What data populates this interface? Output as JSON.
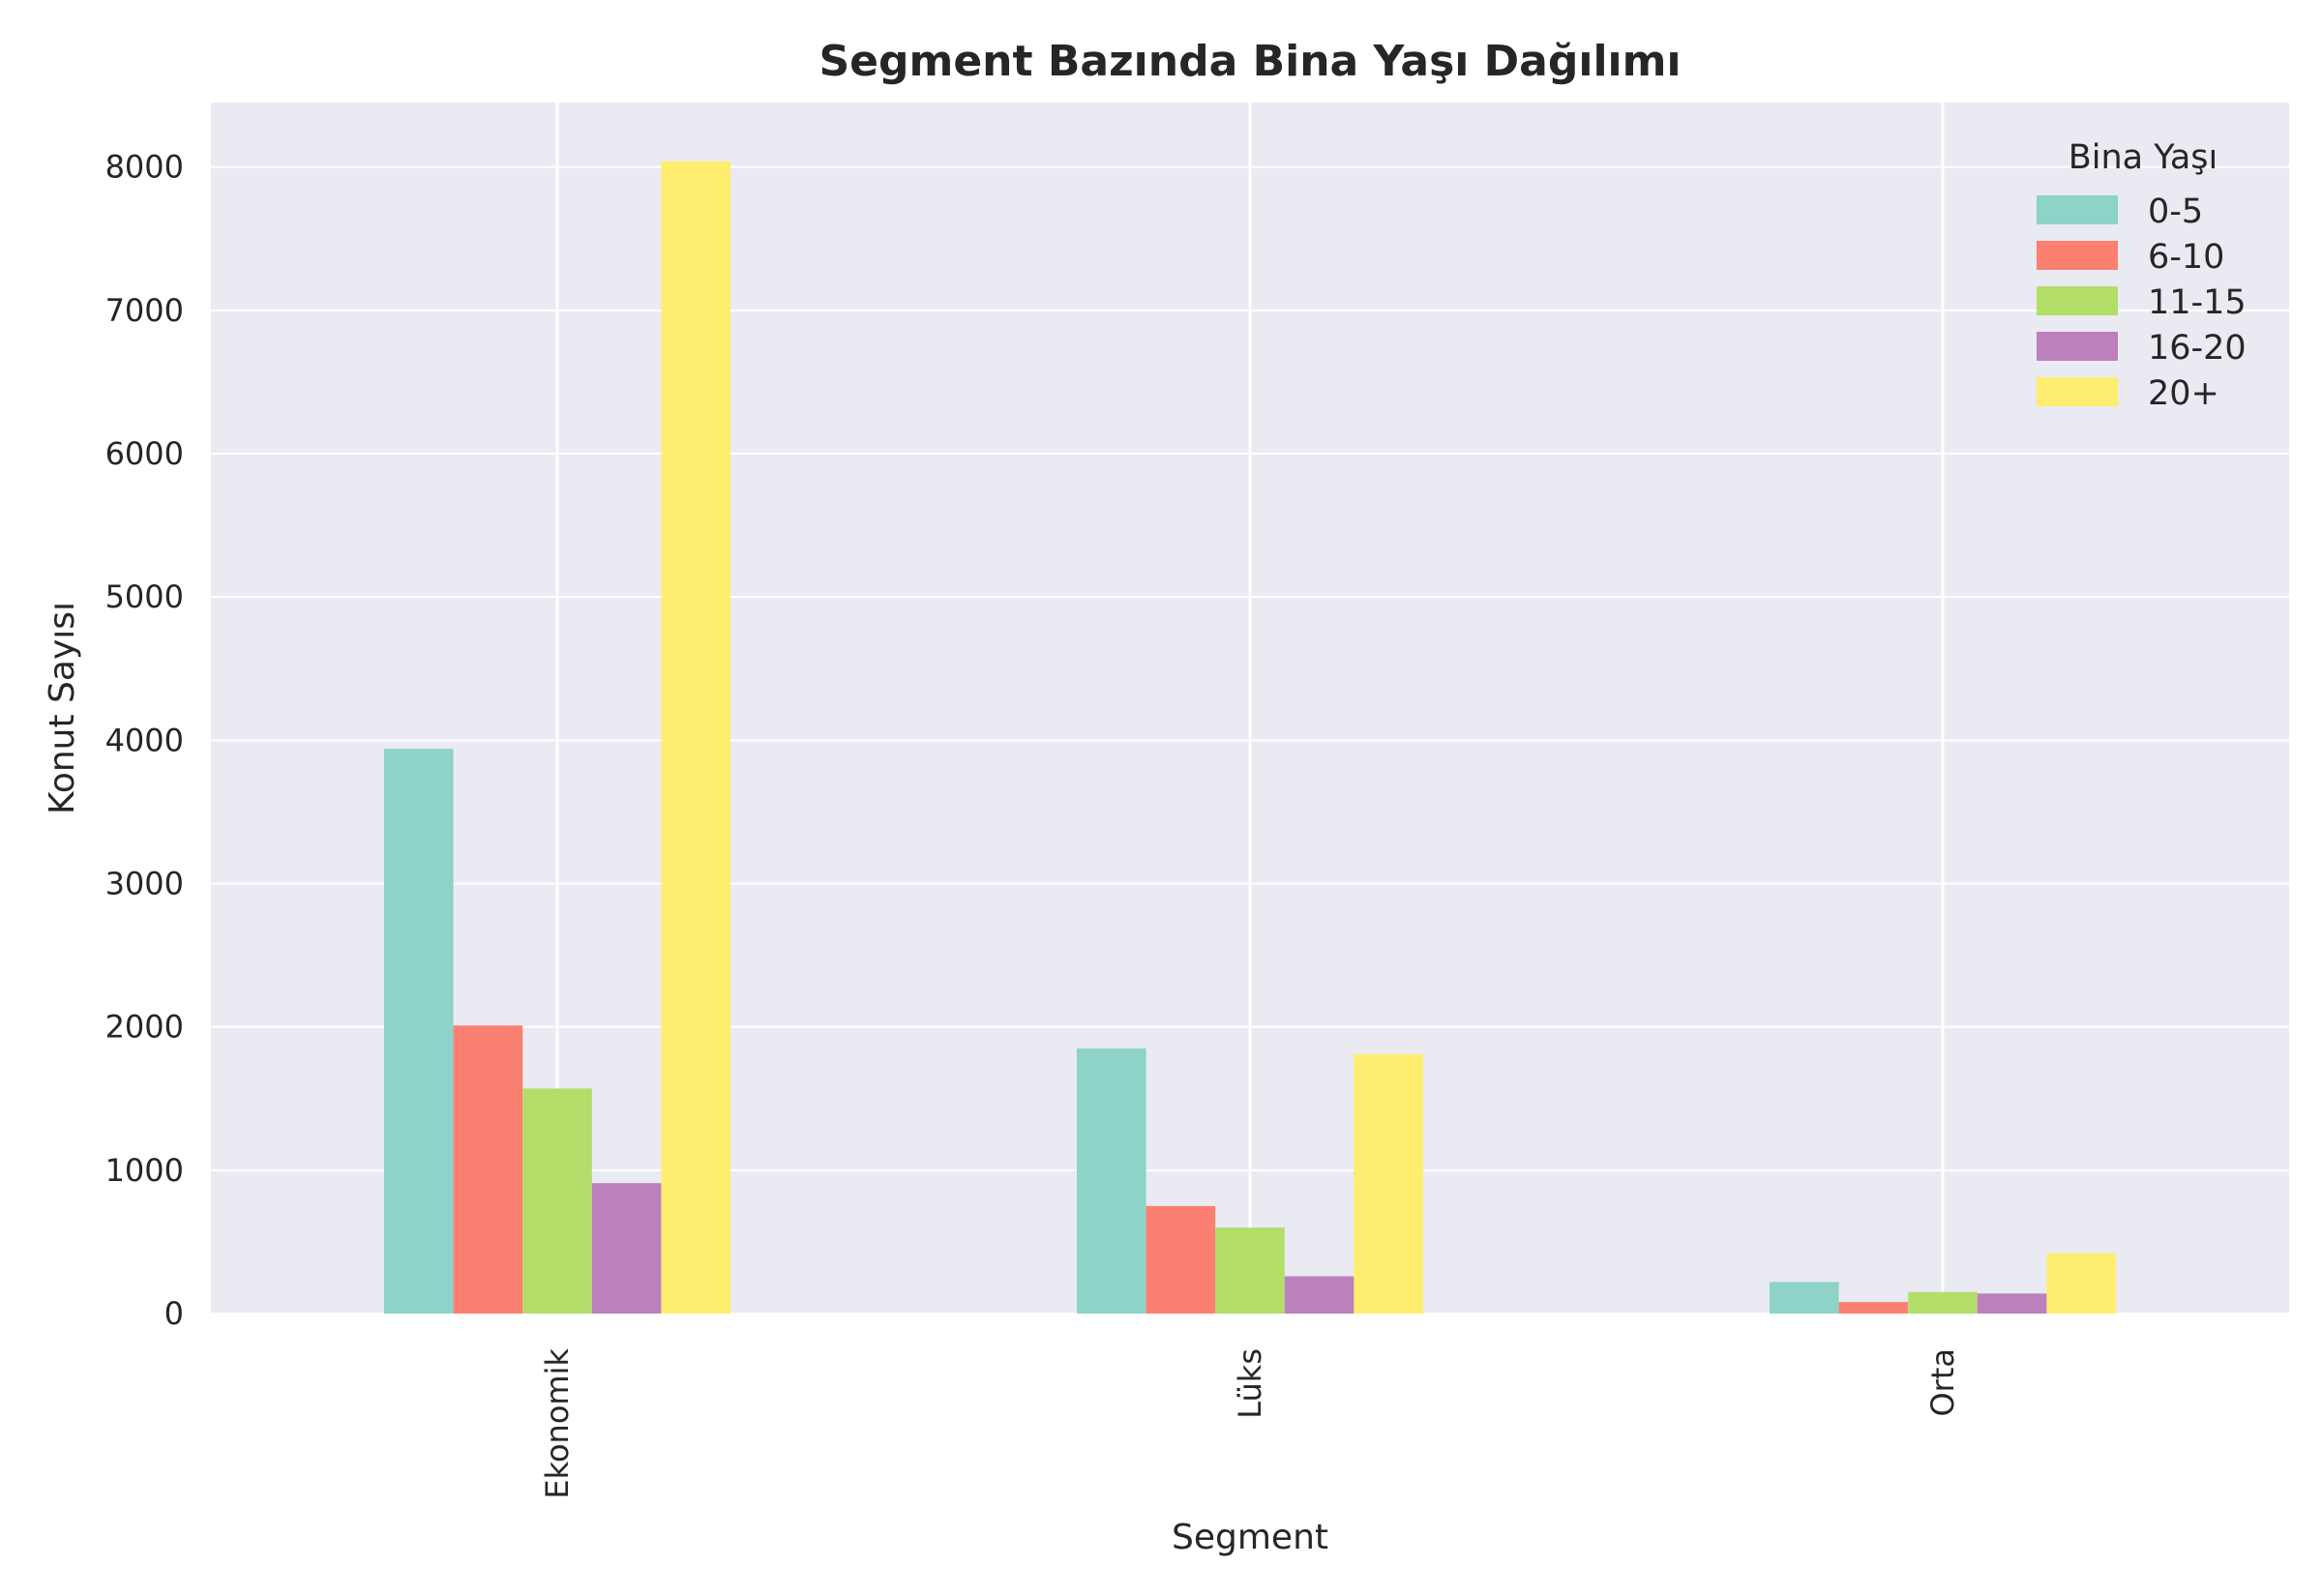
{
  "chart_data": {
    "type": "bar",
    "title": "Segment Bazında Bina Yaşı Dağılımı",
    "xlabel": "Segment",
    "ylabel": "Konut Sayısı",
    "categories": [
      "Ekonomik",
      "Lüks",
      "Orta"
    ],
    "yticks": [
      0,
      1000,
      2000,
      3000,
      4000,
      5000,
      6000,
      7000,
      8000
    ],
    "ylim": [
      0,
      8450
    ],
    "grid": true,
    "legend_title": "Bina Yaşı",
    "legend_position": "top-right",
    "series": [
      {
        "name": "0-5",
        "color": "#8dd3c7",
        "values": [
          3940,
          1850,
          220
        ]
      },
      {
        "name": "6-10",
        "color": "#fb8072",
        "values": [
          2010,
          750,
          80
        ]
      },
      {
        "name": "11-15",
        "color": "#b3de69",
        "values": [
          1570,
          600,
          150
        ]
      },
      {
        "name": "16-20",
        "color": "#bc80bd",
        "values": [
          910,
          260,
          140
        ]
      },
      {
        "name": "20+",
        "color": "#ffed6f",
        "values": [
          8040,
          1810,
          420
        ]
      }
    ],
    "colors": {
      "plot_background": "#eaeaf2",
      "grid": "#ffffff",
      "text": "#262626"
    }
  }
}
